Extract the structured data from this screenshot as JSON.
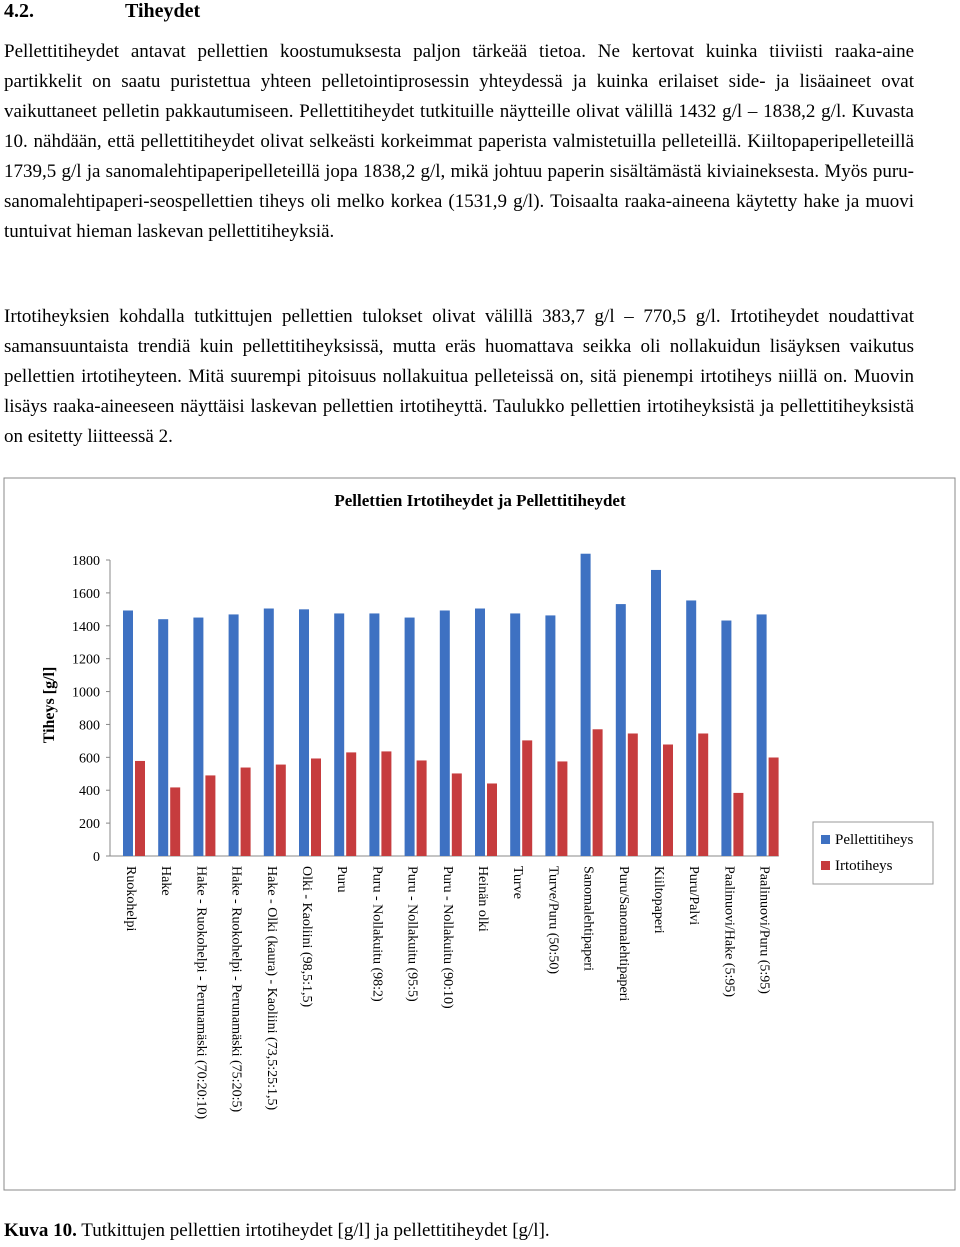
{
  "heading": {
    "number": "4.2.",
    "title": "Tiheydet"
  },
  "paragraphs": [
    "Pellettitiheydet antavat pellettien koostumuksesta paljon tärkeää tietoa. Ne kertovat kuinka tiiviisti raaka-aine partikkelit on saatu puristettua yhteen pelletointiprosessin yhteydessä ja kuinka erilaiset side- ja lisäaineet ovat vaikuttaneet pelletin pakkautumiseen. Pellettitiheydet tutkituille näytteille olivat välillä 1432 g/l – 1838,2 g/l. Kuvasta 10. nähdään, että pellettitiheydet olivat selkeästi korkeimmat paperista valmistetuilla pelleteillä. Kiiltopaperipelleteillä 1739,5 g/l ja sanomalehtipaperipelleteillä jopa 1838,2 g/l, mikä johtuu paperin sisältämästä kiviaineksesta. Myös puru-sanomalehtipaperi-seospellettien tiheys oli melko korkea (1531,9 g/l). Toisaalta raaka-aineena käytetty hake ja muovi tuntuivat hieman laskevan pellettitiheyksiä.",
    "Irtotiheyksien kohdalla tutkittujen pellettien tulokset olivat välillä 383,7 g/l – 770,5 g/l. Irtotiheydet noudattivat samansuuntaista trendiä kuin pellettitiheyksissä, mutta eräs huomattava seikka oli nollakuidun lisäyksen vaikutus pellettien irtotiheyteen. Mitä suurempi pitoisuus nollakuitua pelleteissä on, sitä pienempi irtotiheys niillä on. Muovin lisäys raaka-aineeseen näyttäisi laskevan pellettien irtotiheyttä. Taulukko pellettien irtotiheyksistä ja pellettitiheyksistä on esitetty liitteessä 2."
  ],
  "chart_data": {
    "type": "bar",
    "title": "Pellettien Irtotiheydet ja Pellettitiheydet",
    "y_label": "Tiheys [g/l]",
    "categories": [
      "Ruokohelpi",
      "Hake",
      "Hake - Ruokohelpi - Perunamäski (70:20:10)",
      "Hake - Ruokohelpi - Perunamäski (75:20:5)",
      "Hake - Olki (kaura) - Kaoliini (73,5:25:1,5)",
      "Olki - Kaoliini (98,5:1,5)",
      "Puru",
      "Puru - Nollakuitu (98:2)",
      "Puru - Nollakuitu (95:5)",
      "Puru - Nollakuitu (90:10)",
      "Heinän olki",
      "Turve",
      "Turve/Puru (50:50)",
      "Sanomalehtipaperi",
      "Puru/Sanomalehtipaperi",
      "Kiiltopaperi",
      "Puru/Palvi",
      "Paalinuovi/Hake (5:95)",
      "Paalinuovi/Puru (5:95)"
    ],
    "series": [
      {
        "name": "Pellettitiheys",
        "color": "#3e71c2",
        "values": [
          1493,
          1440,
          1450,
          1469,
          1505,
          1500,
          1475,
          1475,
          1450,
          1493,
          1505,
          1475,
          1463,
          1838.2,
          1531.9,
          1739.5,
          1554,
          1432,
          1469
        ]
      },
      {
        "name": "Irtotiheys",
        "color": "#c63c3e",
        "values": [
          578,
          417,
          490,
          538,
          556,
          593,
          630,
          636,
          581,
          502,
          441,
          703,
          575,
          770.5,
          745,
          678,
          745,
          383.7,
          599
        ]
      }
    ],
    "ylim": [
      0,
      1800
    ],
    "yticks": [
      0,
      200,
      400,
      600,
      800,
      1000,
      1200,
      1400,
      1600,
      1800
    ],
    "grid": false,
    "legend": "right"
  },
  "caption": {
    "label": "Kuva 10.",
    "text": " Tutkittujen pellettien irtotiheydet [g/l] ja pellettitiheydet [g/l]."
  }
}
